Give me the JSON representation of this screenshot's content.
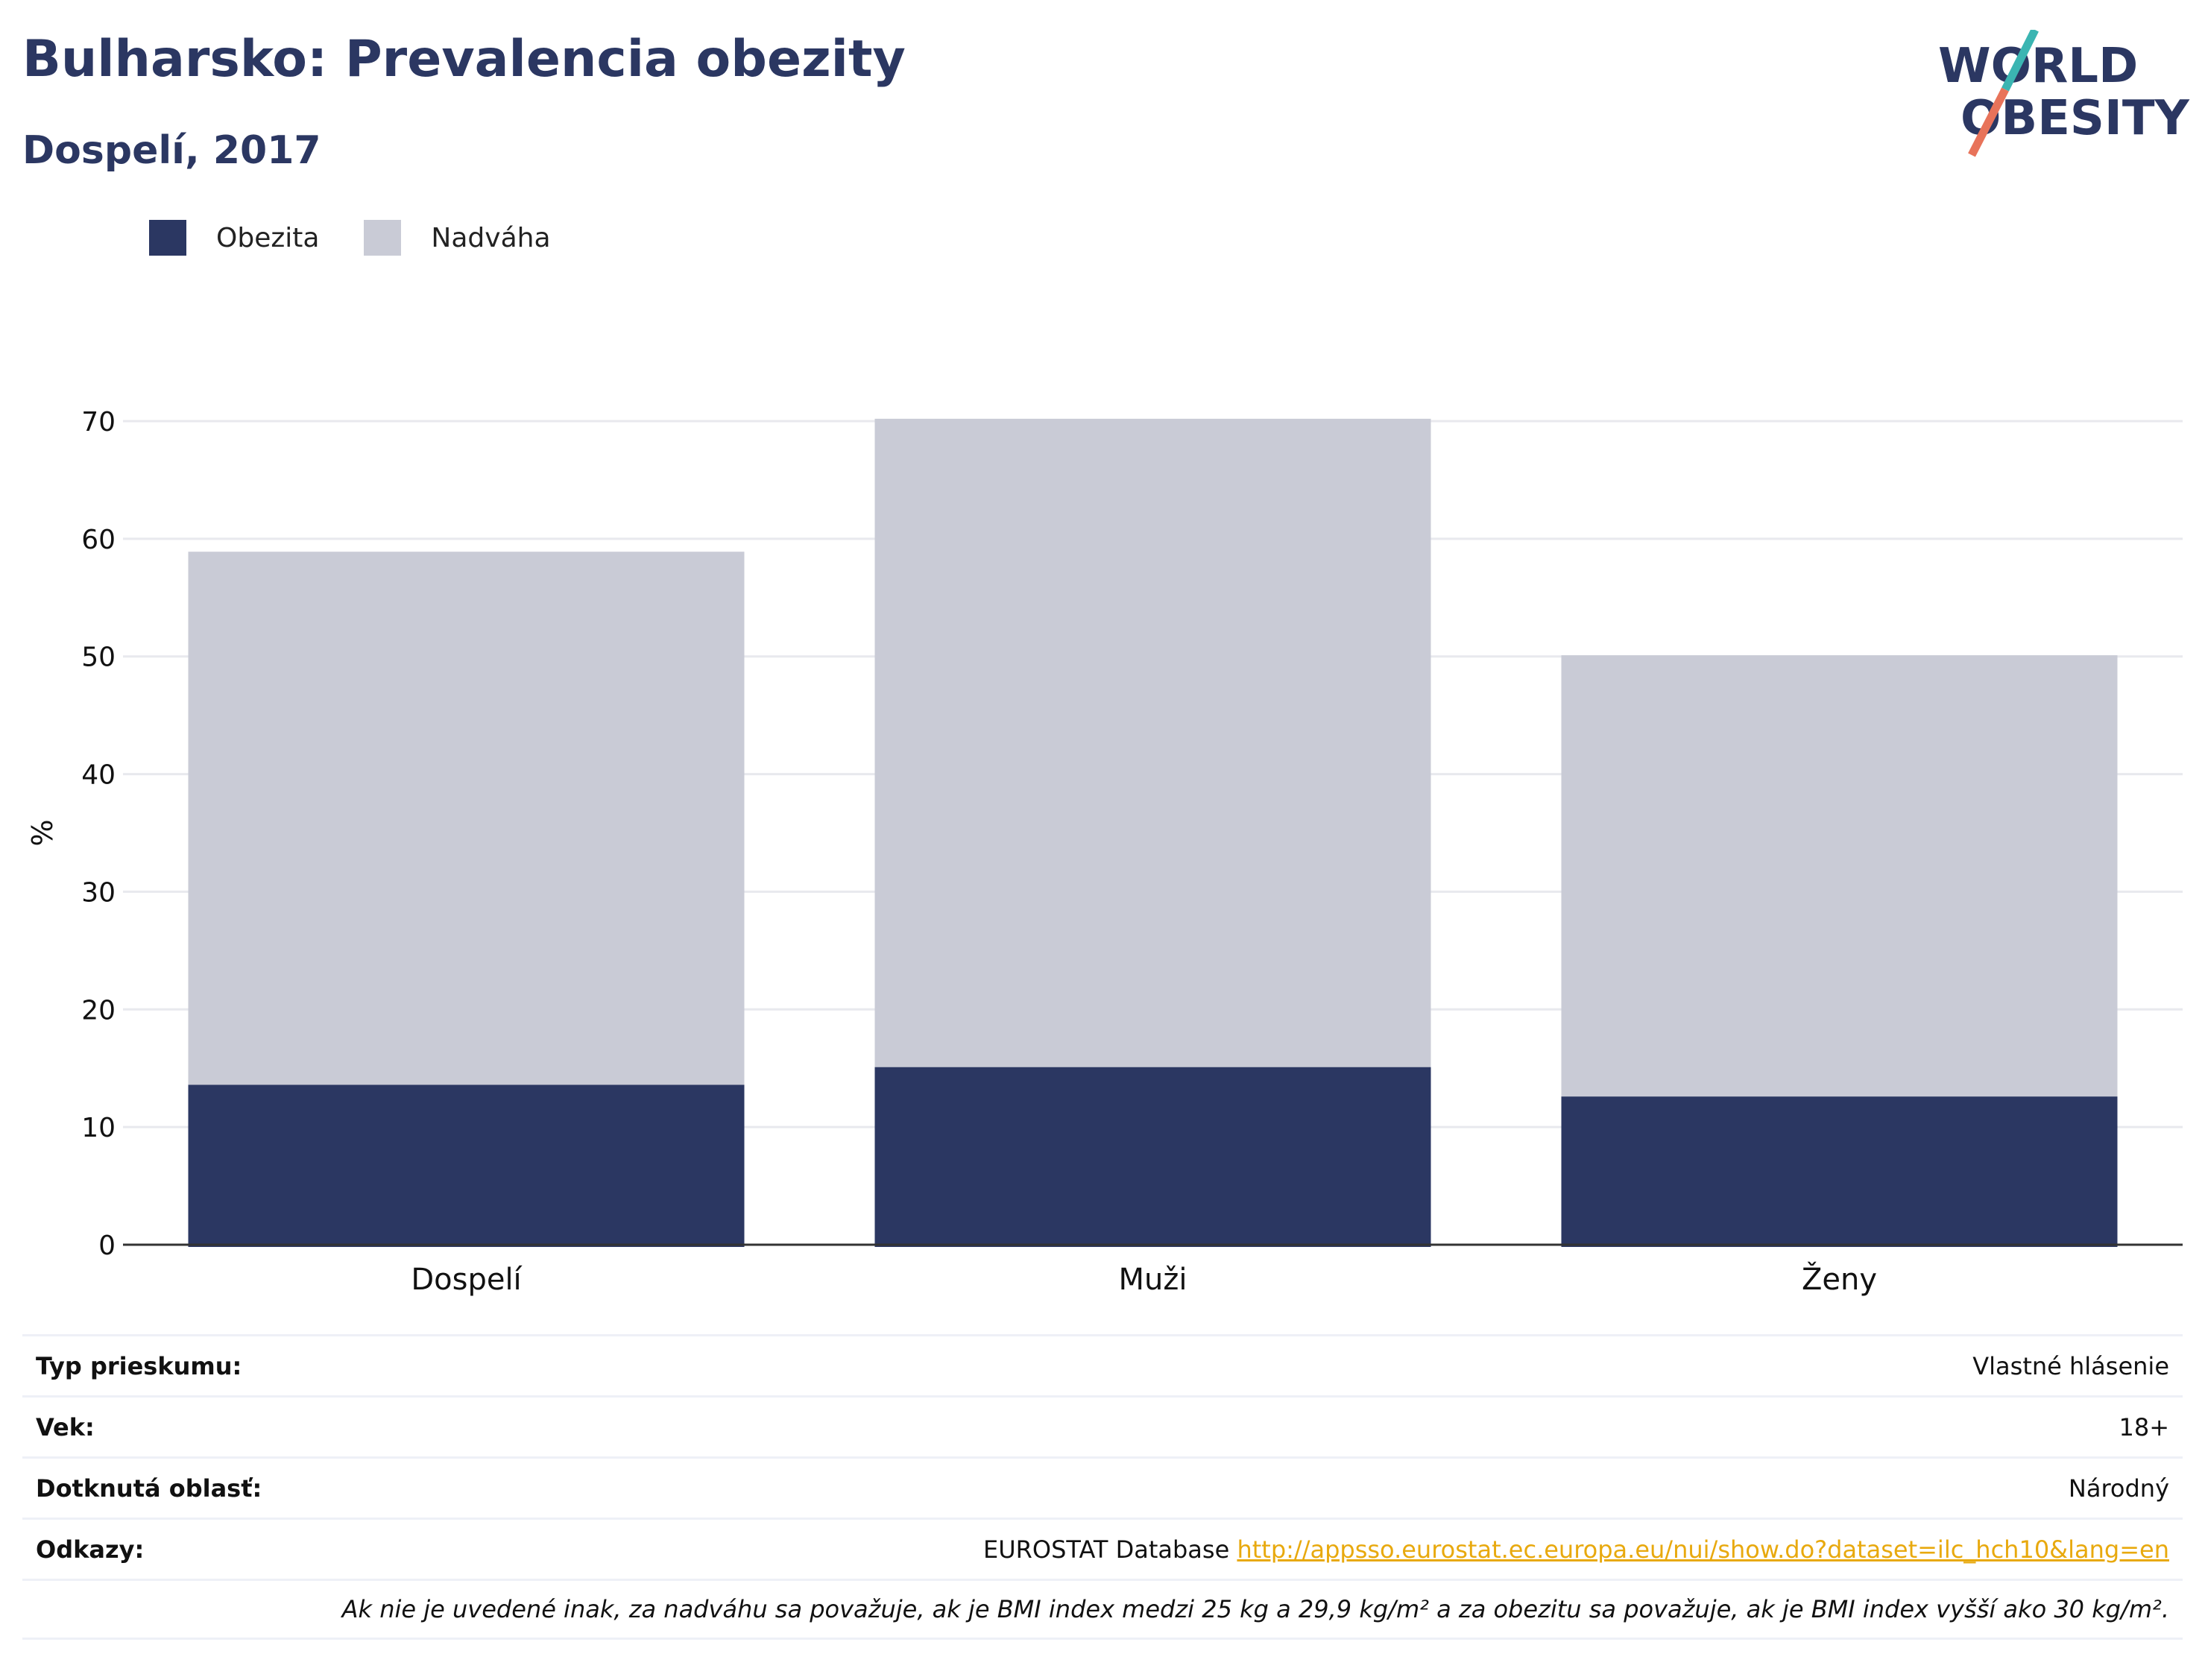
{
  "header": {
    "title": "Bulharsko: Prevalencia obezity",
    "subtitle": "Dospelí, 2017"
  },
  "logo": {
    "line1": "WORLD",
    "line2": "OBESITY",
    "slash_colors": [
      "#3bb5b2",
      "#e8735a"
    ],
    "text_color": "#2b3762"
  },
  "colors": {
    "obesity": "#2b3762",
    "overweight": "#c9cbd6",
    "text": "#2b3762",
    "link": "#e8a90e"
  },
  "chart_data": {
    "type": "bar",
    "stacked": true,
    "categories": [
      "Dospelí",
      "Muži",
      "Ženy"
    ],
    "series": [
      {
        "name": "Obezita",
        "values": [
          13.6,
          15.1,
          12.6
        ],
        "color": "#2b3762"
      },
      {
        "name": "Nadváha",
        "values": [
          45.3,
          55.1,
          37.5
        ],
        "color": "#c9cbd6"
      }
    ],
    "ylabel": "%",
    "ylim": [
      0,
      70
    ],
    "yticks": [
      0,
      10,
      20,
      30,
      40,
      50,
      60,
      70
    ],
    "grid": true,
    "legend_position": "top-left"
  },
  "info": {
    "survey_label": "Typ prieskumu:",
    "survey_value": "Vlastné hlásenie",
    "age_label": "Vek:",
    "age_value": "18+",
    "area_label": "Dotknutá oblasť:",
    "area_value": "Národný",
    "refs_label": "Odkazy:",
    "refs_source": "EUROSTAT Database",
    "refs_url": "http://appsso.eurostat.ec.europa.eu/nui/show.do?dataset=ilc_hch10&lang=en",
    "note": "Ak nie je uvedené inak, za nadváhu sa považuje, ak je BMI index medzi 25 kg a 29,9 kg/m² a za obezitu sa považuje, ak je BMI index vyšší ako 30 kg/m²."
  }
}
